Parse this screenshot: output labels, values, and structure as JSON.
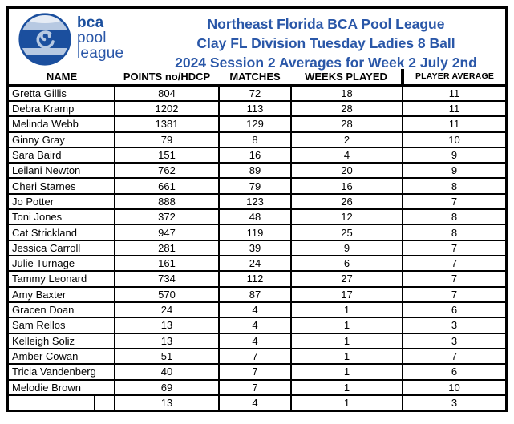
{
  "logo": {
    "line1": "bca",
    "line2": "pool",
    "line3": "league"
  },
  "title": {
    "line1": "Northeast Florida BCA Pool League",
    "line2": "Clay FL Division Tuesday Ladies 8 Ball",
    "line3": "2024 Session 2 Averages for Week 2 July 2nd"
  },
  "colors": {
    "title_blue": "#2a57a8",
    "logo_dark": "#1b4f9e",
    "logo_light": "#b7c9e2",
    "grid_black": "#000000"
  },
  "table": {
    "headers": [
      "NAME",
      "POINTS no/HDCP",
      "MATCHES",
      "WEEKS PLAYED",
      "PLAYER AVERAGE"
    ],
    "rows": [
      {
        "name": "Gretta Gillis",
        "points": "804",
        "matches": "72",
        "weeks": "18",
        "avg": "11"
      },
      {
        "name": "Debra Kramp",
        "points": "1202",
        "matches": "113",
        "weeks": "28",
        "avg": "11"
      },
      {
        "name": "Melinda Webb",
        "points": "1381",
        "matches": "129",
        "weeks": "28",
        "avg": "11"
      },
      {
        "name": "Ginny Gray",
        "points": "79",
        "matches": "8",
        "weeks": "2",
        "avg": "10"
      },
      {
        "name": "Sara Baird",
        "points": "151",
        "matches": "16",
        "weeks": "4",
        "avg": "9"
      },
      {
        "name": "Leilani Newton",
        "points": "762",
        "matches": "89",
        "weeks": "20",
        "avg": "9"
      },
      {
        "name": "Cheri Starnes",
        "points": "661",
        "matches": "79",
        "weeks": "16",
        "avg": "8"
      },
      {
        "name": "Jo Potter",
        "points": "888",
        "matches": "123",
        "weeks": "26",
        "avg": "7"
      },
      {
        "name": "Toni Jones",
        "points": "372",
        "matches": "48",
        "weeks": "12",
        "avg": "8"
      },
      {
        "name": "Cat Strickland",
        "points": "947",
        "matches": "119",
        "weeks": "25",
        "avg": "8"
      },
      {
        "name": "Jessica Carroll",
        "points": "281",
        "matches": "39",
        "weeks": "9",
        "avg": "7"
      },
      {
        "name": "Julie Turnage",
        "points": "161",
        "matches": "24",
        "weeks": "6",
        "avg": "7"
      },
      {
        "name": "Tammy Leonard",
        "points": "734",
        "matches": "112",
        "weeks": "27",
        "avg": "7"
      },
      {
        "name": "Amy Baxter",
        "points": "570",
        "matches": "87",
        "weeks": "17",
        "avg": "7"
      },
      {
        "name": "Gracen Doan",
        "points": "24",
        "matches": "4",
        "weeks": "1",
        "avg": "6"
      },
      {
        "name": "Sam Rellos",
        "points": "13",
        "matches": "4",
        "weeks": "1",
        "avg": "3"
      },
      {
        "name": "Kelleigh Soliz",
        "points": "13",
        "matches": "4",
        "weeks": "1",
        "avg": "3"
      },
      {
        "name": "Amber Cowan",
        "points": "51",
        "matches": "7",
        "weeks": "1",
        "avg": "7"
      },
      {
        "name": "Tricia Vandenberg",
        "points": "40",
        "matches": "7",
        "weeks": "1",
        "avg": "6"
      },
      {
        "name": "Melodie Brown",
        "points": "69",
        "matches": "7",
        "weeks": "1",
        "avg": "10"
      }
    ],
    "footer_row": {
      "name": "",
      "name2": "",
      "points": "13",
      "matches": "4",
      "weeks": "1",
      "avg": "3"
    }
  }
}
